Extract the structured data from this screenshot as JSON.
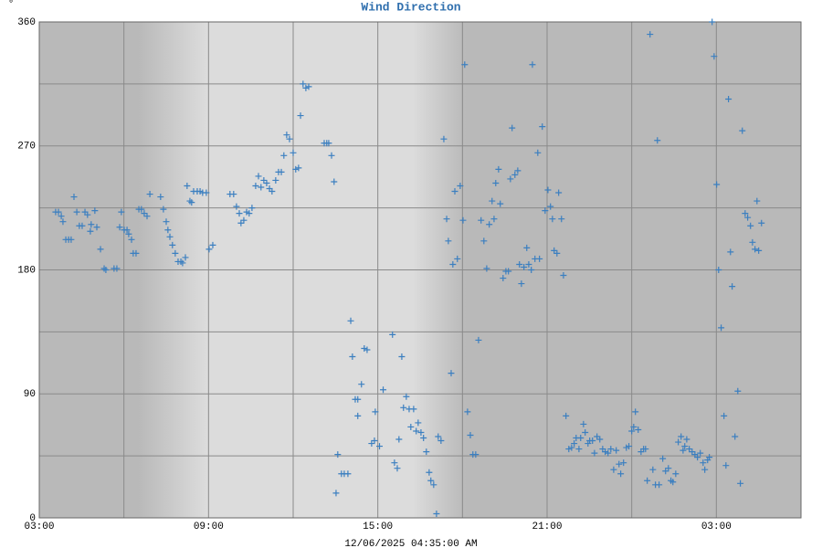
{
  "chart_data": {
    "type": "scatter",
    "title": "Wind Direction",
    "ylabel": "°",
    "xlabel": "12/06/2025 04:35:00 AM",
    "color": "#3b7fc0",
    "grid": true,
    "xlim": [
      0,
      27
    ],
    "xticks": [
      {
        "value": 0,
        "label": "03:00"
      },
      {
        "value": 6,
        "label": "09:00"
      },
      {
        "value": 12,
        "label": "15:00"
      },
      {
        "value": 18,
        "label": "21:00"
      },
      {
        "value": 24,
        "label": "03:00"
      }
    ],
    "x_minor_ticks": [
      3,
      9,
      15,
      21
    ],
    "ylim": [
      0,
      360
    ],
    "yticks": [
      0,
      90,
      180,
      270,
      360
    ],
    "y_minor_ticks": [
      45,
      135,
      225,
      315
    ],
    "x": [
      0.58,
      0.68,
      0.78,
      0.84,
      0.94,
      1.04,
      1.13,
      1.23,
      1.33,
      1.42,
      1.52,
      1.62,
      1.71,
      1.81,
      1.84,
      1.97,
      2.04,
      2.17,
      2.3,
      2.36,
      2.65,
      2.75,
      2.85,
      2.91,
      3.01,
      3.11,
      3.17,
      3.27,
      3.33,
      3.43,
      3.53,
      3.62,
      3.72,
      3.82,
      3.92,
      4.3,
      4.4,
      4.5,
      4.56,
      4.63,
      4.72,
      4.82,
      4.92,
      5.02,
      5.08,
      5.18,
      5.24,
      5.34,
      5.4,
      5.47,
      5.6,
      5.7,
      5.79,
      5.92,
      6.02,
      6.15,
      6.76,
      6.89,
      6.99,
      7.09,
      7.15,
      7.25,
      7.35,
      7.44,
      7.54,
      7.67,
      7.77,
      7.86,
      7.96,
      8.06,
      8.16,
      8.25,
      8.38,
      8.48,
      8.58,
      8.67,
      8.77,
      8.87,
      9.0,
      9.09,
      9.19,
      9.26,
      9.35,
      9.45,
      9.55,
      10.1,
      10.19,
      10.26,
      10.36,
      10.45,
      10.52,
      10.58,
      10.71,
      10.81,
      10.94,
      11.04,
      11.1,
      11.2,
      11.29,
      11.29,
      11.42,
      11.52,
      11.62,
      11.78,
      11.88,
      11.91,
      12.06,
      12.19,
      12.52,
      12.59,
      12.69,
      12.75,
      12.85,
      12.91,
      13.01,
      13.11,
      13.17,
      13.27,
      13.36,
      13.43,
      13.53,
      13.62,
      13.72,
      13.82,
      13.88,
      13.98,
      14.08,
      14.14,
      14.24,
      14.34,
      14.44,
      14.5,
      14.6,
      14.66,
      14.73,
      14.82,
      14.92,
      15.02,
      15.08,
      15.18,
      15.28,
      15.37,
      15.47,
      15.57,
      15.66,
      15.76,
      15.86,
      15.95,
      16.05,
      16.12,
      16.18,
      16.28,
      16.34,
      16.44,
      16.54,
      16.63,
      16.7,
      16.76,
      16.86,
      16.96,
      17.02,
      17.09,
      17.18,
      17.28,
      17.35,
      17.44,
      17.48,
      17.57,
      17.67,
      17.73,
      17.83,
      17.93,
      18.03,
      18.12,
      18.19,
      18.25,
      18.35,
      18.41,
      18.51,
      18.58,
      18.67,
      18.77,
      18.87,
      18.96,
      19.03,
      19.13,
      19.19,
      19.29,
      19.35,
      19.45,
      19.51,
      19.61,
      19.68,
      19.77,
      19.87,
      19.97,
      20.06,
      20.16,
      20.26,
      20.36,
      20.45,
      20.55,
      20.61,
      20.71,
      20.81,
      20.9,
      21.0,
      21.07,
      21.13,
      21.23,
      21.33,
      21.42,
      21.49,
      21.55,
      21.65,
      21.75,
      21.84,
      21.91,
      21.97,
      22.1,
      22.2,
      22.3,
      22.39,
      22.46,
      22.56,
      22.65,
      22.75,
      22.82,
      22.88,
      22.95,
      23.04,
      23.14,
      23.24,
      23.33,
      23.43,
      23.53,
      23.59,
      23.69,
      23.75,
      23.85,
      23.92,
      24.01,
      24.08,
      24.17,
      24.27,
      24.34,
      24.43,
      24.5,
      24.56,
      24.66,
      24.76,
      24.85,
      24.92,
      25.02,
      25.11,
      25.21,
      25.28,
      25.37,
      25.44,
      25.5,
      25.6
    ],
    "values": [
      222,
      222,
      219,
      215,
      202,
      202,
      202,
      233,
      222,
      212,
      212,
      222,
      220,
      208,
      213,
      223,
      211,
      195,
      181,
      180,
      181,
      181,
      211,
      222,
      209,
      209,
      206,
      202,
      192,
      192,
      224,
      224,
      221,
      219,
      235,
      233,
      224,
      215,
      209,
      204,
      198,
      192,
      186,
      186,
      185,
      189,
      241,
      230,
      229,
      237,
      237,
      237,
      236,
      236,
      195,
      198,
      235,
      235,
      226,
      221,
      214,
      216,
      222,
      221,
      225,
      241,
      248,
      240,
      245,
      243,
      239,
      237,
      245,
      251,
      251,
      263,
      278,
      275,
      265,
      253,
      254,
      292,
      315,
      312,
      313,
      272,
      272,
      272,
      263,
      244,
      18,
      46,
      32,
      32,
      32,
      143,
      117,
      86,
      86,
      74,
      97,
      123,
      122,
      54,
      56,
      77,
      52,
      93,
      133,
      40,
      36,
      57,
      117,
      80,
      88,
      79,
      66,
      79,
      63,
      69,
      62,
      58,
      48,
      33,
      27,
      24,
      3,
      59,
      56,
      275,
      217,
      201,
      105,
      184,
      237,
      188,
      241,
      216,
      329,
      77,
      60,
      46,
      46,
      129,
      216,
      201,
      181,
      213,
      230,
      217,
      243,
      253,
      228,
      174,
      179,
      179,
      246,
      283,
      249,
      252,
      184,
      170,
      182,
      196,
      184,
      180,
      329,
      188,
      265,
      188,
      284,
      223,
      238,
      226,
      217,
      194,
      192,
      236,
      217,
      176,
      74,
      50,
      51,
      54,
      58,
      50,
      58,
      68,
      62,
      54,
      56,
      56,
      47,
      59,
      57,
      50,
      48,
      47,
      50,
      35,
      49,
      39,
      32,
      40,
      51,
      52,
      63,
      66,
      77,
      64,
      48,
      50,
      50,
      27,
      351,
      35,
      24,
      274,
      24,
      43,
      34,
      36,
      27,
      26,
      32,
      55,
      59,
      49,
      52,
      57,
      50,
      48,
      46,
      44,
      47,
      40,
      35,
      42,
      44,
      360,
      335,
      242,
      180,
      138,
      74,
      38,
      304,
      193,
      168,
      59,
      92,
      25,
      281,
      221,
      218,
      212,
      200,
      195,
      230,
      194,
      214
    ]
  }
}
